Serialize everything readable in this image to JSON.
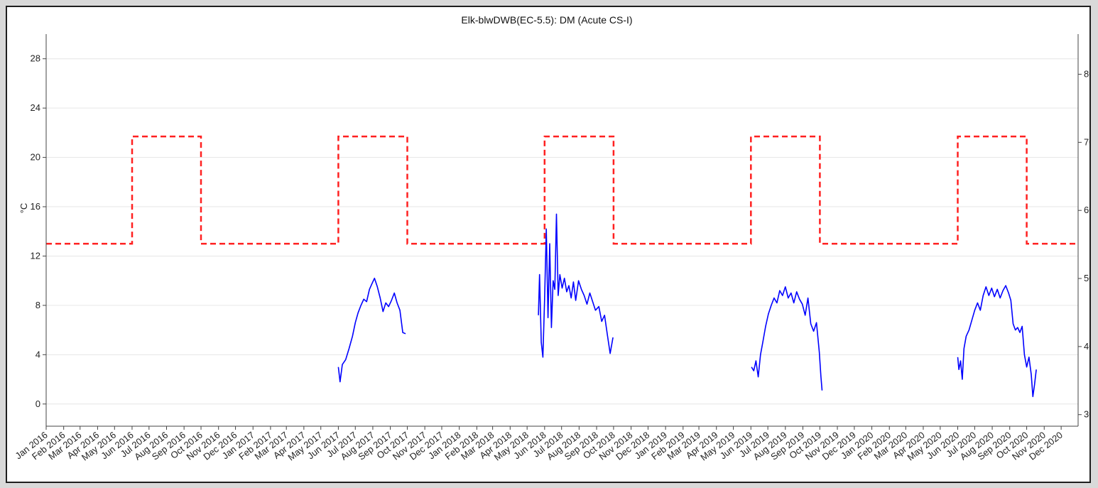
{
  "chart_data": {
    "type": "line",
    "title": "Elk-blwDWB(EC-5.5): DM (Acute CS-I)",
    "ylabel": "°C",
    "ylim": [
      -1.8,
      30
    ],
    "yticks": [
      0,
      4,
      8,
      12,
      16,
      20,
      24,
      28
    ],
    "y2lim": [
      28.3,
      85.9
    ],
    "y2ticks": [
      30,
      40,
      50,
      60,
      70,
      80
    ],
    "xlim": [
      "2016-01-01",
      "2020-12-31"
    ],
    "xticks": [
      "Jan 2016",
      "Feb 2016",
      "Mar 2016",
      "Apr 2016",
      "May 2016",
      "Jun 2016",
      "Jul 2016",
      "Aug 2016",
      "Sep 2016",
      "Oct 2016",
      "Nov 2016",
      "Dec 2016",
      "Jan 2017",
      "Feb 2017",
      "Mar 2017",
      "Apr 2017",
      "May 2017",
      "Jun 2017",
      "Jul 2017",
      "Aug 2017",
      "Sep 2017",
      "Oct 2017",
      "Nov 2017",
      "Dec 2017",
      "Jan 2018",
      "Feb 2018",
      "Mar 2018",
      "Apr 2018",
      "May 2018",
      "Jun 2018",
      "Jul 2018",
      "Aug 2018",
      "Sep 2018",
      "Oct 2018",
      "Nov 2018",
      "Dec 2018",
      "Jan 2019",
      "Feb 2019",
      "Mar 2019",
      "Apr 2019",
      "May 2019",
      "Jun 2019",
      "Jul 2019",
      "Aug 2019",
      "Sep 2019",
      "Oct 2019",
      "Nov 2019",
      "Dec 2019",
      "Jan 2020",
      "Feb 2020",
      "Mar 2020",
      "Apr 2020",
      "May 2020",
      "Jun 2020",
      "Jul 2020",
      "Aug 2020",
      "Sep 2020",
      "Oct 2020",
      "Nov 2020",
      "Dec 2020"
    ],
    "grid": true,
    "colors": {
      "temperature": "#0000ff",
      "criteria": "#ff2020"
    },
    "series": [
      {
        "style": "dashed-red",
        "points": [
          [
            "2016-01-01",
            13.0
          ],
          [
            "2016-06-01",
            13.0
          ],
          [
            "2016-06-01",
            21.7
          ],
          [
            "2016-10-01",
            21.7
          ],
          [
            "2016-10-01",
            13.0
          ],
          [
            "2017-06-01",
            13.0
          ],
          [
            "2017-06-01",
            21.7
          ],
          [
            "2017-10-01",
            21.7
          ],
          [
            "2017-10-01",
            13.0
          ],
          [
            "2018-06-01",
            13.0
          ],
          [
            "2018-06-01",
            21.7
          ],
          [
            "2018-10-01",
            21.7
          ],
          [
            "2018-10-01",
            13.0
          ],
          [
            "2019-06-01",
            13.0
          ],
          [
            "2019-06-01",
            21.7
          ],
          [
            "2019-10-01",
            21.7
          ],
          [
            "2019-10-01",
            13.0
          ],
          [
            "2020-06-01",
            13.0
          ],
          [
            "2020-06-01",
            21.7
          ],
          [
            "2020-10-01",
            21.7
          ],
          [
            "2020-10-01",
            13.0
          ],
          [
            "2020-12-31",
            13.0
          ]
        ]
      },
      {
        "style": "solid-blue",
        "segments": [
          [
            [
              "2017-06-01",
              3.0
            ],
            [
              "2017-06-04",
              1.8
            ],
            [
              "2017-06-08",
              3.2
            ],
            [
              "2017-06-14",
              3.6
            ],
            [
              "2017-06-20",
              4.5
            ],
            [
              "2017-06-26",
              5.5
            ],
            [
              "2017-07-01",
              6.6
            ],
            [
              "2017-07-06",
              7.4
            ],
            [
              "2017-07-11",
              8.0
            ],
            [
              "2017-07-16",
              8.5
            ],
            [
              "2017-07-21",
              8.3
            ],
            [
              "2017-07-26",
              9.3
            ],
            [
              "2017-07-31",
              9.8
            ],
            [
              "2017-08-04",
              10.2
            ],
            [
              "2017-08-09",
              9.5
            ],
            [
              "2017-08-14",
              8.6
            ],
            [
              "2017-08-19",
              7.5
            ],
            [
              "2017-08-24",
              8.2
            ],
            [
              "2017-08-29",
              7.9
            ],
            [
              "2017-09-03",
              8.4
            ],
            [
              "2017-09-08",
              9.0
            ],
            [
              "2017-09-13",
              8.2
            ],
            [
              "2017-09-18",
              7.6
            ],
            [
              "2017-09-23",
              5.8
            ],
            [
              "2017-09-28",
              5.7
            ]
          ],
          [
            [
              "2018-05-21",
              7.2
            ],
            [
              "2018-05-23",
              10.5
            ],
            [
              "2018-05-26",
              5.0
            ],
            [
              "2018-05-29",
              3.8
            ],
            [
              "2018-06-01",
              8.5
            ],
            [
              "2018-06-04",
              14.2
            ],
            [
              "2018-06-07",
              7.0
            ],
            [
              "2018-06-10",
              13.0
            ],
            [
              "2018-06-13",
              6.2
            ],
            [
              "2018-06-16",
              10.0
            ],
            [
              "2018-06-19",
              9.3
            ],
            [
              "2018-06-22",
              15.4
            ],
            [
              "2018-06-25",
              8.8
            ],
            [
              "2018-06-28",
              10.5
            ],
            [
              "2018-07-02",
              9.4
            ],
            [
              "2018-07-06",
              10.2
            ],
            [
              "2018-07-10",
              9.1
            ],
            [
              "2018-07-14",
              9.6
            ],
            [
              "2018-07-18",
              8.6
            ],
            [
              "2018-07-22",
              9.9
            ],
            [
              "2018-07-26",
              8.4
            ],
            [
              "2018-07-31",
              10.0
            ],
            [
              "2018-08-05",
              9.3
            ],
            [
              "2018-08-10",
              8.8
            ],
            [
              "2018-08-15",
              8.1
            ],
            [
              "2018-08-20",
              9.0
            ],
            [
              "2018-08-25",
              8.3
            ],
            [
              "2018-08-30",
              7.6
            ],
            [
              "2018-09-05",
              7.9
            ],
            [
              "2018-09-10",
              6.7
            ],
            [
              "2018-09-15",
              7.2
            ],
            [
              "2018-09-20",
              5.6
            ],
            [
              "2018-09-25",
              4.1
            ],
            [
              "2018-09-30",
              5.4
            ]
          ],
          [
            [
              "2019-06-02",
              3.0
            ],
            [
              "2019-06-06",
              2.7
            ],
            [
              "2019-06-10",
              3.5
            ],
            [
              "2019-06-14",
              2.2
            ],
            [
              "2019-06-18",
              4.0
            ],
            [
              "2019-06-22",
              5.0
            ],
            [
              "2019-06-27",
              6.3
            ],
            [
              "2019-07-02",
              7.3
            ],
            [
              "2019-07-07",
              8.0
            ],
            [
              "2019-07-12",
              8.6
            ],
            [
              "2019-07-17",
              8.2
            ],
            [
              "2019-07-22",
              9.2
            ],
            [
              "2019-07-27",
              8.8
            ],
            [
              "2019-08-01",
              9.5
            ],
            [
              "2019-08-06",
              8.6
            ],
            [
              "2019-08-11",
              9.0
            ],
            [
              "2019-08-16",
              8.2
            ],
            [
              "2019-08-21",
              9.1
            ],
            [
              "2019-08-26",
              8.5
            ],
            [
              "2019-08-31",
              8.1
            ],
            [
              "2019-09-05",
              7.2
            ],
            [
              "2019-09-10",
              8.6
            ],
            [
              "2019-09-15",
              6.5
            ],
            [
              "2019-09-20",
              5.9
            ],
            [
              "2019-09-25",
              6.6
            ],
            [
              "2019-09-30",
              4.2
            ],
            [
              "2019-10-03",
              2.2
            ],
            [
              "2019-10-05",
              1.1
            ]
          ],
          [
            [
              "2020-06-01",
              3.8
            ],
            [
              "2020-06-03",
              2.8
            ],
            [
              "2020-06-06",
              3.5
            ],
            [
              "2020-06-09",
              2.0
            ],
            [
              "2020-06-12",
              4.5
            ],
            [
              "2020-06-16",
              5.5
            ],
            [
              "2020-06-21",
              6.0
            ],
            [
              "2020-06-26",
              6.8
            ],
            [
              "2020-07-01",
              7.6
            ],
            [
              "2020-07-06",
              8.2
            ],
            [
              "2020-07-11",
              7.6
            ],
            [
              "2020-07-16",
              8.8
            ],
            [
              "2020-07-21",
              9.5
            ],
            [
              "2020-07-26",
              8.8
            ],
            [
              "2020-07-31",
              9.4
            ],
            [
              "2020-08-05",
              8.7
            ],
            [
              "2020-08-10",
              9.3
            ],
            [
              "2020-08-15",
              8.6
            ],
            [
              "2020-08-20",
              9.2
            ],
            [
              "2020-08-25",
              9.6
            ],
            [
              "2020-08-30",
              9.0
            ],
            [
              "2020-09-03",
              8.4
            ],
            [
              "2020-09-07",
              6.5
            ],
            [
              "2020-09-11",
              6.0
            ],
            [
              "2020-09-15",
              6.2
            ],
            [
              "2020-09-19",
              5.8
            ],
            [
              "2020-09-23",
              6.3
            ],
            [
              "2020-09-27",
              4.0
            ],
            [
              "2020-10-01",
              3.0
            ],
            [
              "2020-10-05",
              3.8
            ],
            [
              "2020-10-09",
              2.4
            ],
            [
              "2020-10-12",
              0.6
            ],
            [
              "2020-10-15",
              1.6
            ],
            [
              "2020-10-18",
              2.8
            ]
          ]
        ]
      }
    ]
  }
}
